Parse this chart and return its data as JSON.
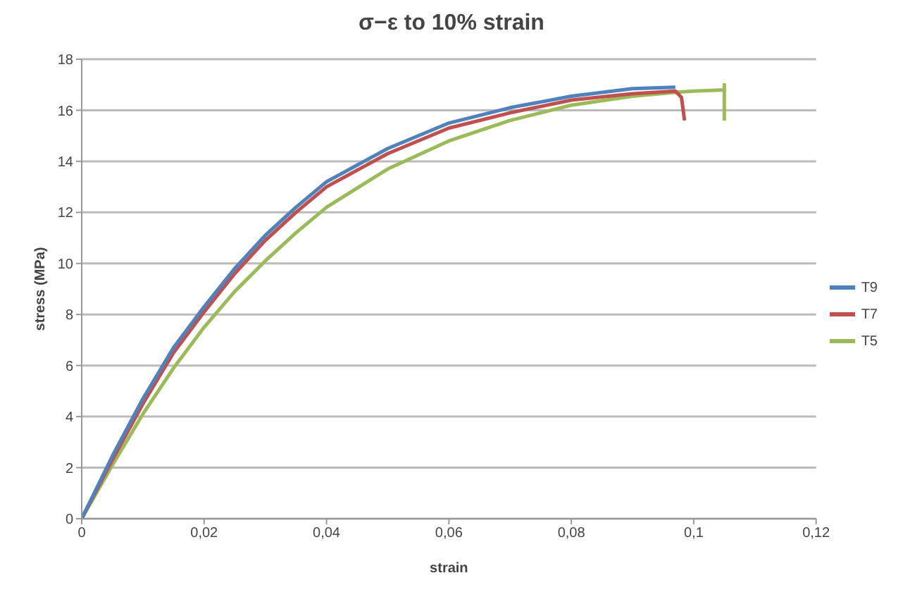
{
  "chart_data": {
    "type": "line",
    "title": "σ−ε  to 10% strain",
    "xlabel": "strain",
    "ylabel": "stress (MPa)",
    "xlim": [
      0,
      0.12
    ],
    "xticks": [
      0,
      {
        "value": 0.02,
        "label": "0,02"
      },
      {
        "value": 0.04,
        "label": "0,04"
      },
      {
        "value": 0.06,
        "label": "0,06"
      },
      {
        "value": 0.08,
        "label": "0,08"
      },
      {
        "value": 0.1,
        "label": "0,1"
      },
      {
        "value": 0.12,
        "label": "0,12"
      }
    ],
    "ylim": [
      0,
      18
    ],
    "yticks": [
      0,
      2,
      4,
      6,
      8,
      10,
      12,
      14,
      16,
      18
    ],
    "grid": "y",
    "legend": "right",
    "marker": "none",
    "line_style": "solid",
    "series": [
      {
        "name": "T9",
        "color": "#4f81bd",
        "x": [
          0,
          0.005,
          0.01,
          0.015,
          0.02,
          0.025,
          0.03,
          0.035,
          0.04,
          0.05,
          0.06,
          0.07,
          0.08,
          0.09,
          0.097
        ],
        "values": [
          0,
          2.45,
          4.7,
          6.7,
          8.3,
          9.8,
          11.1,
          12.2,
          13.2,
          14.5,
          15.5,
          16.1,
          16.55,
          16.85,
          16.9
        ]
      },
      {
        "name": "T7",
        "color": "#c0504d",
        "x": [
          0,
          0.005,
          0.01,
          0.015,
          0.02,
          0.025,
          0.03,
          0.035,
          0.04,
          0.05,
          0.06,
          0.07,
          0.08,
          0.09,
          0.097,
          0.098,
          0.0985
        ],
        "values": [
          0,
          2.3,
          4.5,
          6.5,
          8.1,
          9.6,
          10.9,
          12.0,
          13.0,
          14.3,
          15.3,
          15.9,
          16.4,
          16.65,
          16.75,
          16.5,
          15.6
        ]
      },
      {
        "name": "T5",
        "color": "#9bbb59",
        "x": [
          0,
          0.005,
          0.01,
          0.015,
          0.02,
          0.025,
          0.03,
          0.035,
          0.04,
          0.05,
          0.06,
          0.07,
          0.08,
          0.09,
          0.097,
          0.1,
          0.105,
          0.105,
          0.105
        ],
        "values": [
          0,
          2.1,
          4.1,
          5.9,
          7.5,
          8.9,
          10.1,
          11.2,
          12.2,
          13.7,
          14.8,
          15.6,
          16.2,
          16.55,
          16.7,
          16.75,
          16.8,
          17.0,
          15.6
        ]
      }
    ]
  }
}
